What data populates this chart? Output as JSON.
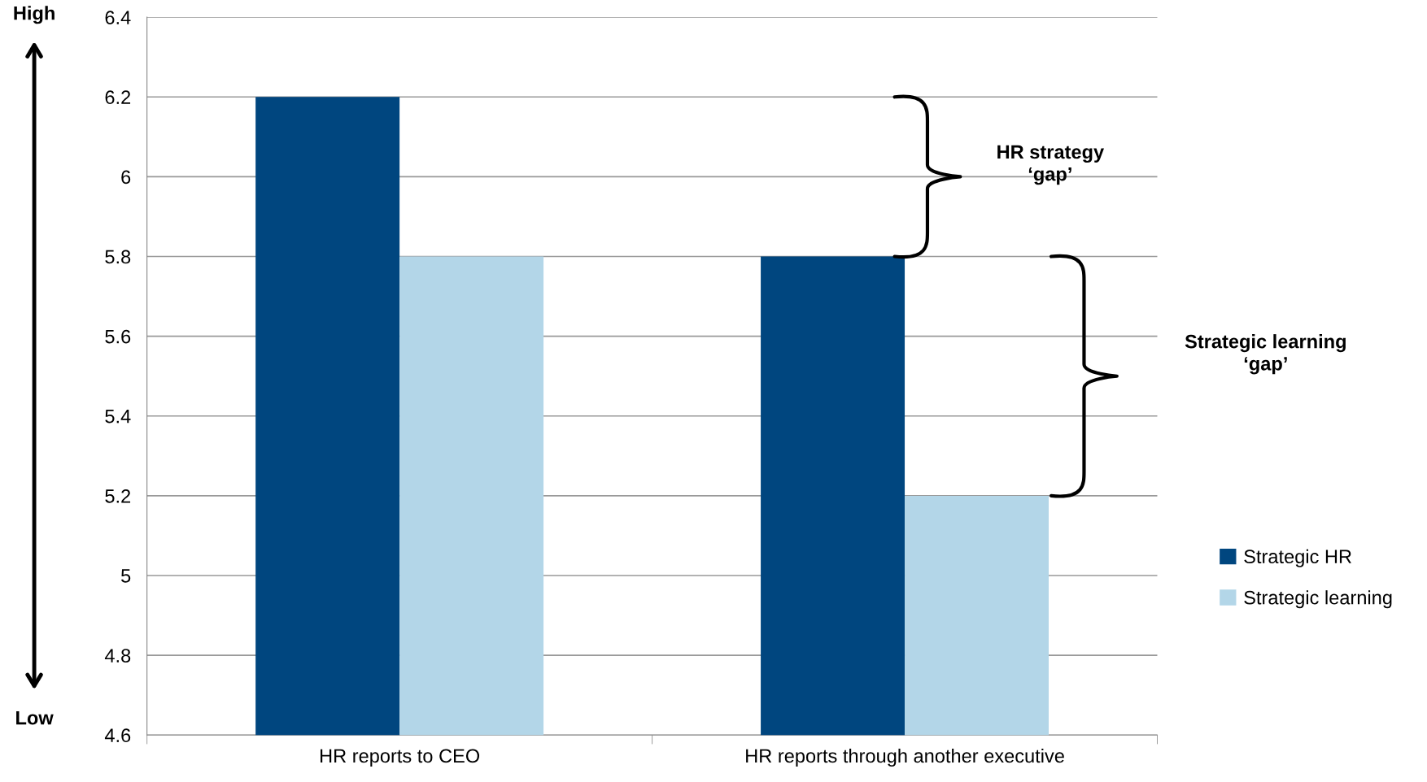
{
  "chart_data": {
    "type": "bar",
    "categories": [
      "HR reports to CEO",
      "HR reports through another executive"
    ],
    "series": [
      {
        "name": "Strategic HR",
        "color": "#00467f",
        "values": [
          6.2,
          5.8
        ]
      },
      {
        "name": "Strategic learning",
        "color": "#b3d6e8",
        "values": [
          5.8,
          5.2
        ]
      }
    ],
    "ylim": [
      4.6,
      6.4
    ],
    "yticks": [
      4.6,
      4.8,
      5,
      5.2,
      5.4,
      5.6,
      5.8,
      6,
      6.2,
      6.4
    ],
    "grid": "y",
    "legend": "right",
    "annotations": [
      "High",
      "Low",
      "HR strategy\n‘gap’",
      "Strategic learning\n‘gap’"
    ]
  }
}
